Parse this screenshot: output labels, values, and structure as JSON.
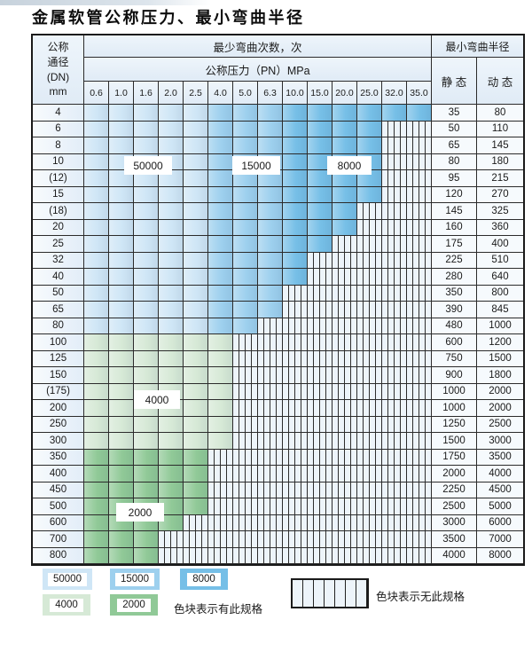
{
  "title": "金属软管公称压力、最小弯曲半径",
  "table": {
    "corner": {
      "line1": "公称",
      "line2": "通径",
      "line3": "(DN)",
      "line4": "mm"
    },
    "header_top": "最少弯曲次数，次",
    "header_right": "最小弯曲半径",
    "header_pressure": "公称压力（PN）MPa",
    "static_label": "静 态",
    "dynamic_label": "动 态",
    "pressure_columns": [
      "0.6",
      "1.0",
      "1.6",
      "2.0",
      "2.5",
      "4.0",
      "5.0",
      "6.3",
      "10.0",
      "15.0",
      "20.0",
      "25.0",
      "32.0",
      "35.0"
    ],
    "rows": [
      {
        "dn": "4",
        "static": "35",
        "dynamic": "80",
        "colored": 14,
        "band": "blue"
      },
      {
        "dn": "6",
        "static": "50",
        "dynamic": "110",
        "colored": 12,
        "band": "blue"
      },
      {
        "dn": "8",
        "static": "65",
        "dynamic": "145",
        "colored": 12,
        "band": "blue"
      },
      {
        "dn": "10",
        "static": "80",
        "dynamic": "180",
        "colored": 12,
        "band": "blue"
      },
      {
        "dn": "(12)",
        "static": "95",
        "dynamic": "215",
        "colored": 12,
        "band": "blue"
      },
      {
        "dn": "15",
        "static": "120",
        "dynamic": "270",
        "colored": 12,
        "band": "blue"
      },
      {
        "dn": "(18)",
        "static": "145",
        "dynamic": "325",
        "colored": 11,
        "band": "blue"
      },
      {
        "dn": "20",
        "static": "160",
        "dynamic": "360",
        "colored": 11,
        "band": "blue"
      },
      {
        "dn": "25",
        "static": "175",
        "dynamic": "400",
        "colored": 10,
        "band": "blue"
      },
      {
        "dn": "32",
        "static": "225",
        "dynamic": "510",
        "colored": 9,
        "band": "blue"
      },
      {
        "dn": "40",
        "static": "280",
        "dynamic": "640",
        "colored": 9,
        "band": "blue"
      },
      {
        "dn": "50",
        "static": "350",
        "dynamic": "800",
        "colored": 8,
        "band": "blue"
      },
      {
        "dn": "65",
        "static": "390",
        "dynamic": "845",
        "colored": 8,
        "band": "blue"
      },
      {
        "dn": "80",
        "static": "480",
        "dynamic": "1000",
        "colored": 7,
        "band": "blue"
      },
      {
        "dn": "100",
        "static": "600",
        "dynamic": "1200",
        "colored": 6,
        "band": "g4000"
      },
      {
        "dn": "125",
        "static": "750",
        "dynamic": "1500",
        "colored": 6,
        "band": "g4000"
      },
      {
        "dn": "150",
        "static": "900",
        "dynamic": "1800",
        "colored": 6,
        "band": "g4000"
      },
      {
        "dn": "(175)",
        "static": "1000",
        "dynamic": "2000",
        "colored": 6,
        "band": "g4000"
      },
      {
        "dn": "200",
        "static": "1000",
        "dynamic": "2000",
        "colored": 6,
        "band": "g4000"
      },
      {
        "dn": "250",
        "static": "1250",
        "dynamic": "2500",
        "colored": 6,
        "band": "g4000"
      },
      {
        "dn": "300",
        "static": "1500",
        "dynamic": "3000",
        "colored": 6,
        "band": "g4000"
      },
      {
        "dn": "350",
        "static": "1750",
        "dynamic": "3500",
        "colored": 5,
        "band": "g2000"
      },
      {
        "dn": "400",
        "static": "2000",
        "dynamic": "4000",
        "colored": 5,
        "band": "g2000"
      },
      {
        "dn": "450",
        "static": "2250",
        "dynamic": "4500",
        "colored": 5,
        "band": "g2000"
      },
      {
        "dn": "500",
        "static": "2500",
        "dynamic": "5000",
        "colored": 5,
        "band": "g2000"
      },
      {
        "dn": "600",
        "static": "3000",
        "dynamic": "6000",
        "colored": 4,
        "band": "g2000"
      },
      {
        "dn": "700",
        "static": "3500",
        "dynamic": "7000",
        "colored": 3,
        "band": "g2000"
      },
      {
        "dn": "800",
        "static": "4000",
        "dynamic": "8000",
        "colored": 3,
        "band": "g2000"
      }
    ]
  },
  "legend": {
    "present_note": "色块表示有此规格",
    "absent_note": "色块表示无此规格",
    "items": [
      {
        "label": "50000",
        "color": "#cfe6f6"
      },
      {
        "label": "15000",
        "color": "#9dd0ee"
      },
      {
        "label": "8000",
        "color": "#76bfe7"
      },
      {
        "label": "4000",
        "color": "#d6e9d6"
      },
      {
        "label": "2000",
        "color": "#90c997"
      }
    ]
  },
  "colors": {
    "grid_line": "#2b2b2b",
    "hatch_bg": "#edf4fa",
    "header_bg": "#e9f2fa",
    "dn_bg": "#e4eef8",
    "value_bg": "#f6fafd"
  }
}
